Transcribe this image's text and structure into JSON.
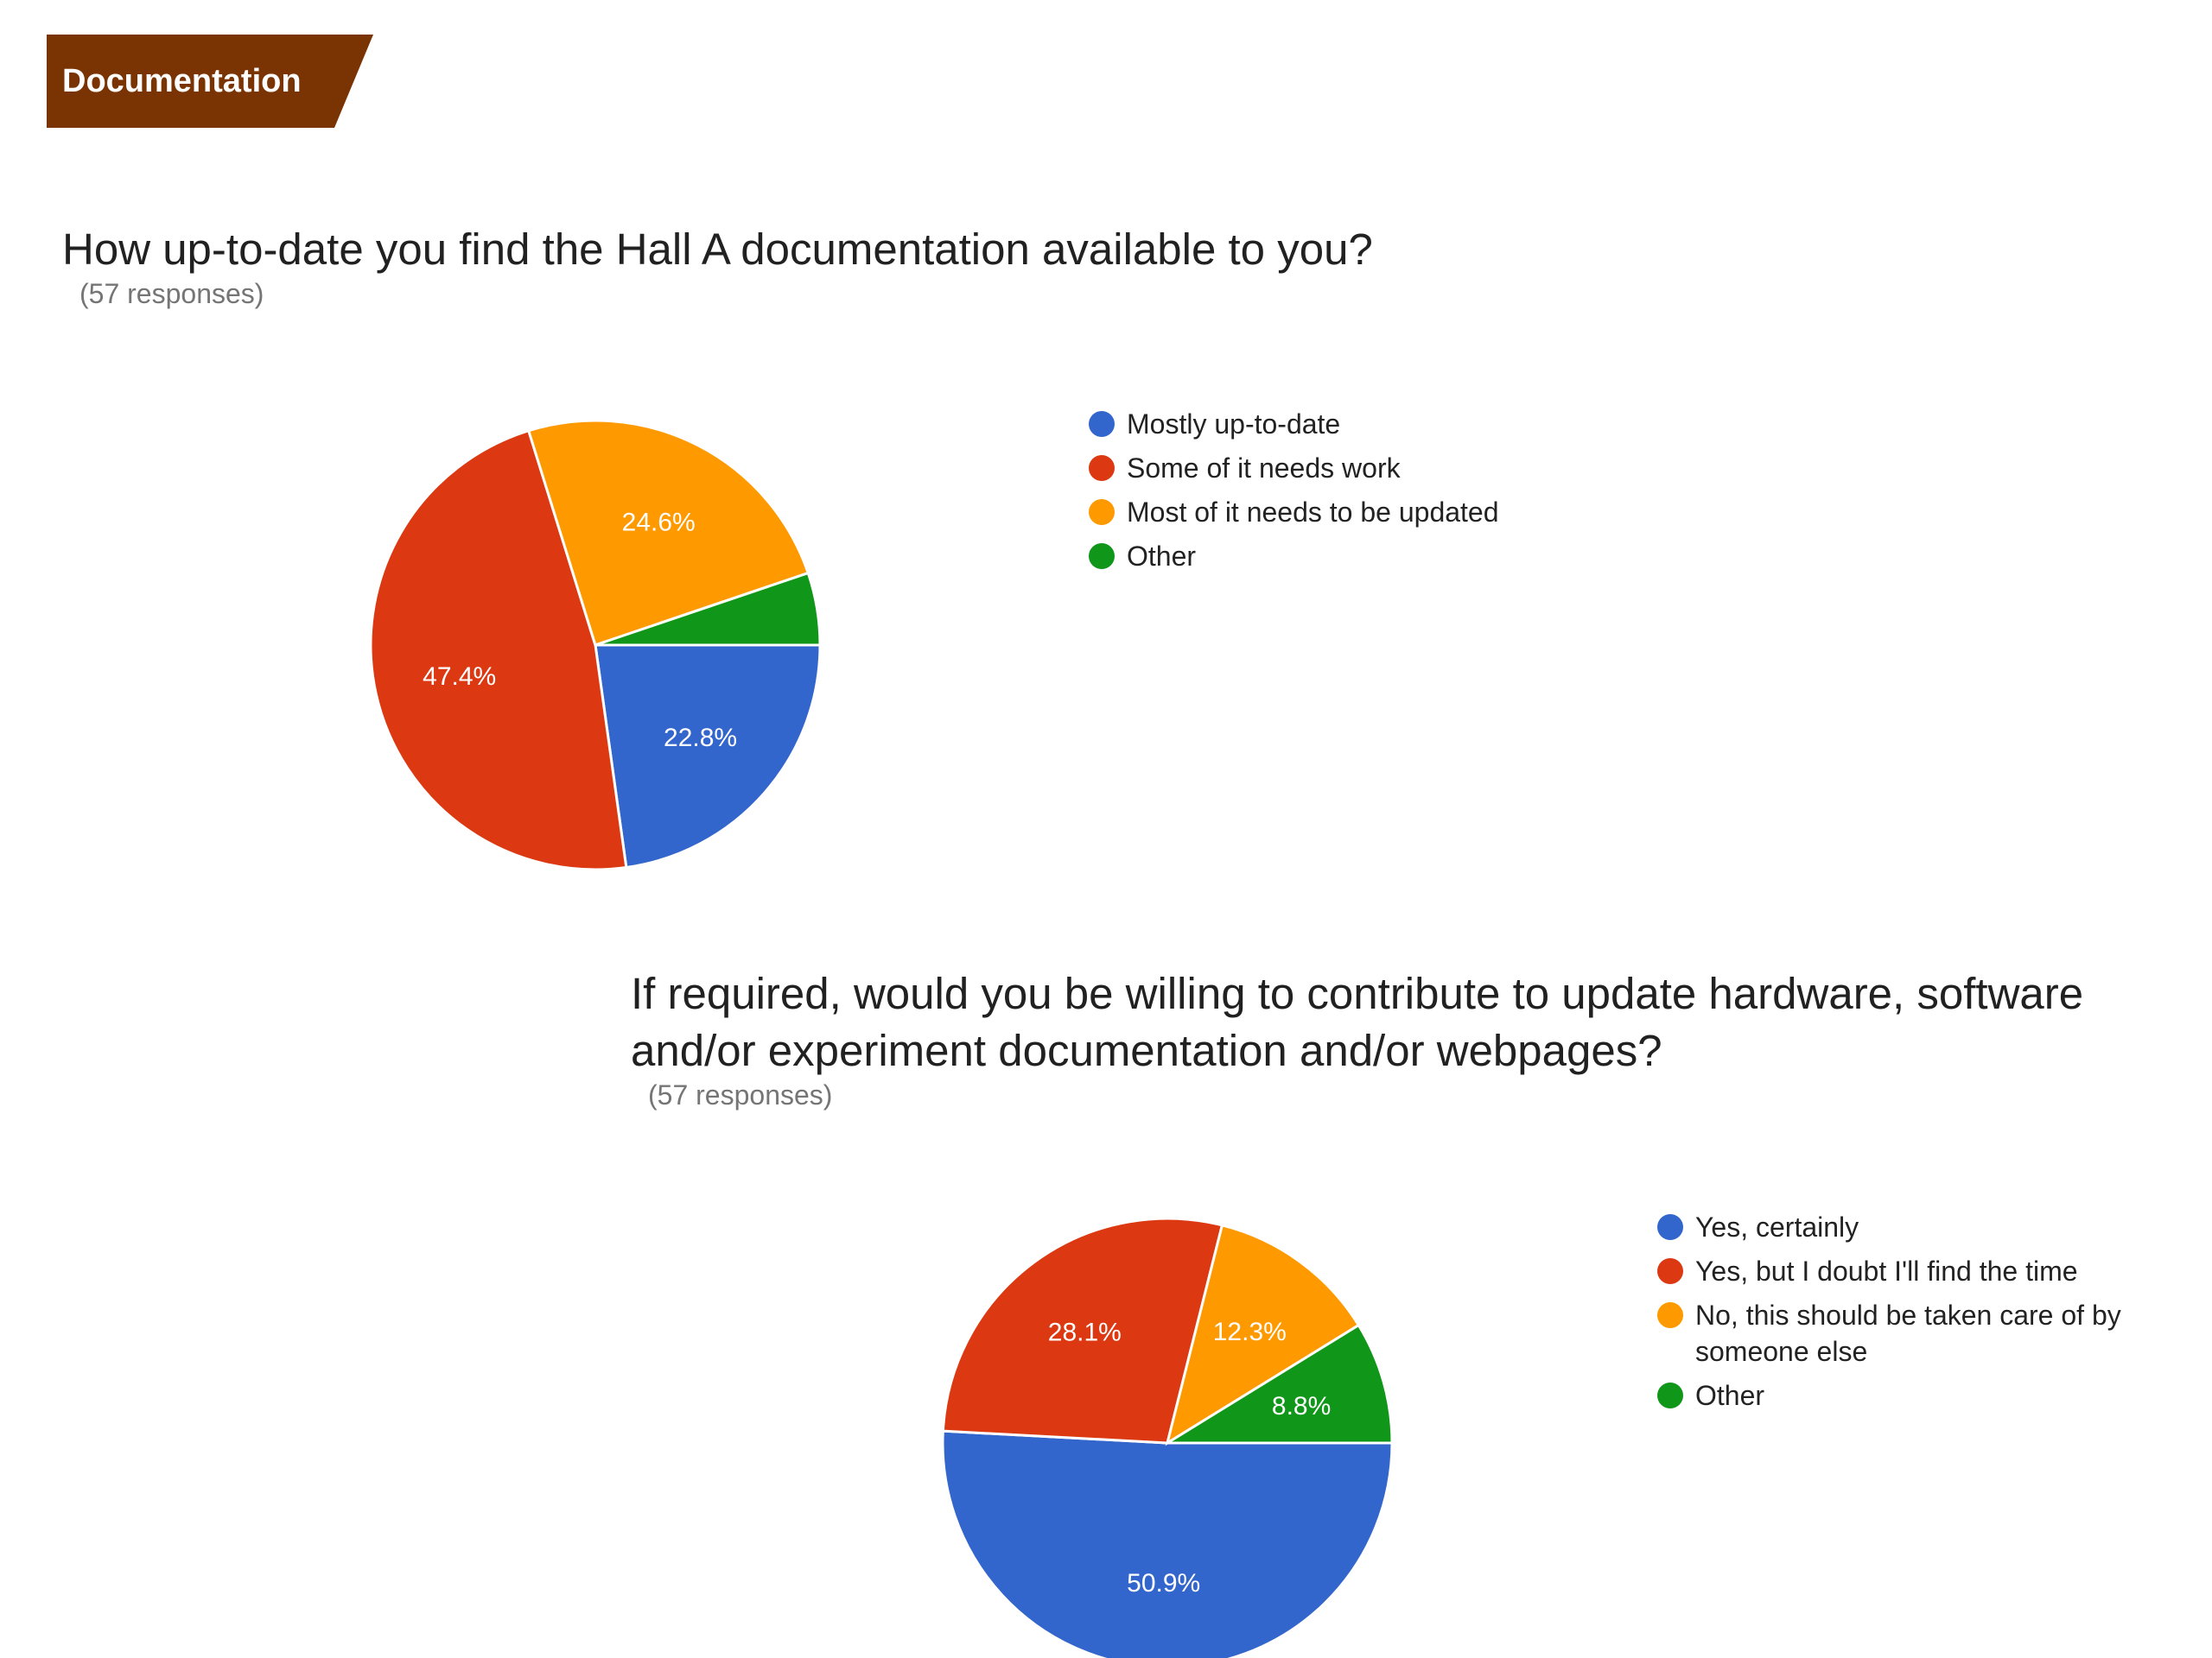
{
  "section": {
    "label": "Documentation",
    "color": "#7a3403"
  },
  "chart_data": [
    {
      "type": "pie",
      "title": "How up-to-date you find the Hall A documentation available to you?",
      "subtitle": "(57 responses)",
      "categories": [
        "Mostly up-to-date",
        "Some of it needs work",
        "Most of it needs to be updated",
        "Other"
      ],
      "values": [
        22.8,
        47.4,
        24.6,
        5.2
      ],
      "labels": [
        "22.8%",
        "47.4%",
        "24.6%",
        ""
      ],
      "colors": [
        "#3366cc",
        "#dc3912",
        "#ff9900",
        "#109618"
      ],
      "legend_position": "right"
    },
    {
      "type": "pie",
      "title": "If required, would you be willing to contribute to update hardware, software and/or experiment documentation and/or webpages?",
      "subtitle": "(57 responses)",
      "categories": [
        "Yes, certainly",
        "Yes, but I doubt I'll find the time",
        "No, this should be taken care of by someone else",
        "Other"
      ],
      "values": [
        50.9,
        28.1,
        12.3,
        8.8
      ],
      "labels": [
        "50.9%",
        "28.1%",
        "12.3%",
        "8.8%"
      ],
      "colors": [
        "#3366cc",
        "#dc3912",
        "#ff9900",
        "#109618"
      ],
      "legend_position": "right"
    }
  ]
}
